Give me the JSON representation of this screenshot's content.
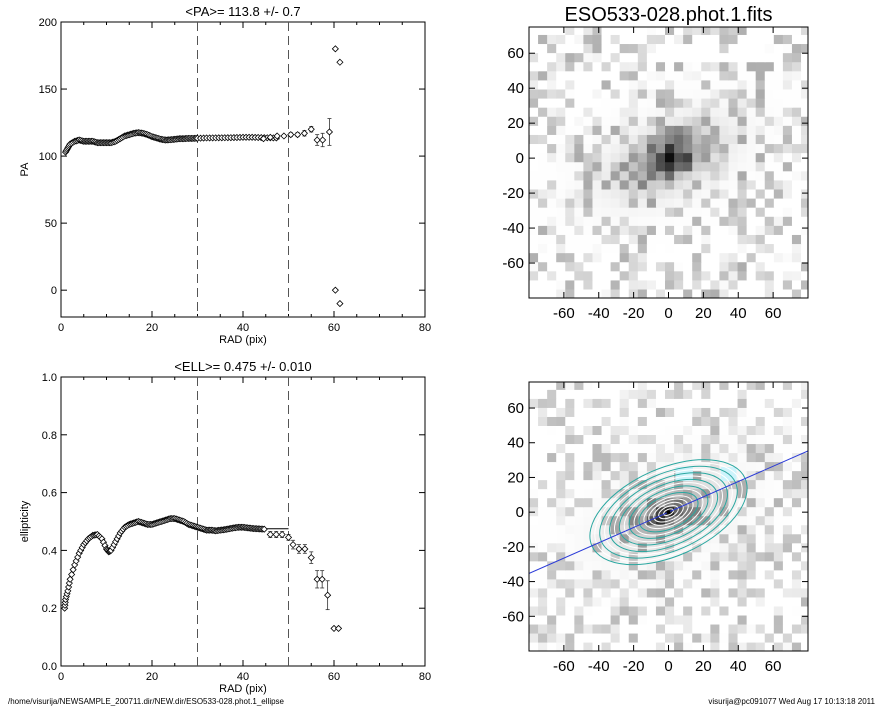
{
  "footer": {
    "path": "/home/visurija/NEWSAMPLE_200711.dir/NEW.dir/ESO533-028.phot.1_ellipse",
    "stamp": "visurija@pc091077  Wed Aug 17 10:13:18 2011"
  },
  "chart_data": [
    {
      "type": "scatter",
      "title": "<PA>= 113.8 +/-   0.7",
      "xlabel": "RAD (pix)",
      "ylabel": "PA",
      "xlim": [
        0,
        80
      ],
      "ylim": [
        -20,
        200
      ],
      "xticks": [
        0,
        20,
        40,
        60,
        80
      ],
      "yticks": [
        0,
        50,
        100,
        150,
        200
      ],
      "vlines": [
        30,
        50
      ],
      "dense_curve": [
        [
          1,
          103
        ],
        [
          1.5,
          106
        ],
        [
          2,
          109
        ],
        [
          3,
          111
        ],
        [
          4,
          112
        ],
        [
          5,
          111
        ],
        [
          6,
          111
        ],
        [
          7,
          111
        ],
        [
          8,
          110
        ],
        [
          9,
          110
        ],
        [
          10,
          110
        ],
        [
          11,
          110
        ],
        [
          12,
          111
        ],
        [
          13,
          113
        ],
        [
          14,
          115
        ],
        [
          15,
          116
        ],
        [
          16,
          117
        ],
        [
          17,
          117.5
        ],
        [
          18,
          117
        ],
        [
          19,
          116
        ],
        [
          20,
          114.5
        ],
        [
          21,
          113.5
        ],
        [
          22,
          112.5
        ],
        [
          23,
          112
        ],
        [
          24,
          112.2
        ],
        [
          25,
          112.5
        ],
        [
          26,
          113
        ],
        [
          27,
          113
        ],
        [
          28,
          113.2
        ],
        [
          29,
          113.2
        ],
        [
          30,
          113.3
        ],
        [
          32,
          113.5
        ],
        [
          34,
          113.6
        ],
        [
          36,
          113.7
        ],
        [
          38,
          113.8
        ],
        [
          40,
          114
        ],
        [
          42,
          114
        ],
        [
          44,
          113.8
        ],
        [
          46,
          113.6
        ],
        [
          48,
          113.5
        ]
      ],
      "points": [
        {
          "x": 44.5,
          "y": 113,
          "err": 1
        },
        {
          "x": 46,
          "y": 114,
          "err": 1
        },
        {
          "x": 47.5,
          "y": 115,
          "err": 1
        },
        {
          "x": 49,
          "y": 115,
          "err": 1
        },
        {
          "x": 50.5,
          "y": 116,
          "err": 1.5
        },
        {
          "x": 52,
          "y": 116,
          "err": 1.5
        },
        {
          "x": 53.5,
          "y": 117,
          "err": 2
        },
        {
          "x": 55,
          "y": 120,
          "err": 2
        },
        {
          "x": 56.3,
          "y": 112,
          "err": 4
        },
        {
          "x": 57.5,
          "y": 112,
          "err": 5
        },
        {
          "x": 59,
          "y": 118,
          "err": 10
        },
        {
          "x": 60.3,
          "y": 180,
          "err": 0
        },
        {
          "x": 61.3,
          "y": 170,
          "err": 0
        },
        {
          "x": 60.3,
          "y": 0,
          "err": 0
        },
        {
          "x": 61.3,
          "y": -10,
          "err": 0
        }
      ]
    },
    {
      "type": "scatter",
      "title": "<ELL>= 0.475 +/-  0.010",
      "xlabel": "RAD (pix)",
      "ylabel": "ellipticity",
      "xlim": [
        0,
        80
      ],
      "ylim": [
        0.0,
        1.0
      ],
      "xticks": [
        0,
        20,
        40,
        60,
        80
      ],
      "yticks": [
        "0.0",
        "0.2",
        "0.4",
        "0.6",
        "0.8",
        "1.0"
      ],
      "vlines": [
        30,
        50
      ],
      "hline": {
        "x0": 30,
        "x1": 50,
        "y": 0.475
      },
      "dense_curve": [
        [
          0.8,
          0.2
        ],
        [
          1,
          0.23
        ],
        [
          1.5,
          0.26
        ],
        [
          2,
          0.3
        ],
        [
          3,
          0.35
        ],
        [
          4,
          0.39
        ],
        [
          5,
          0.42
        ],
        [
          6,
          0.44
        ],
        [
          7,
          0.452
        ],
        [
          8,
          0.455
        ],
        [
          9,
          0.44
        ],
        [
          10,
          0.405
        ],
        [
          10.5,
          0.395
        ],
        [
          11,
          0.4
        ],
        [
          12,
          0.43
        ],
        [
          13,
          0.46
        ],
        [
          14,
          0.48
        ],
        [
          15,
          0.49
        ],
        [
          16,
          0.495
        ],
        [
          17,
          0.5
        ],
        [
          18,
          0.495
        ],
        [
          19,
          0.49
        ],
        [
          20,
          0.49
        ],
        [
          21,
          0.495
        ],
        [
          22,
          0.5
        ],
        [
          23,
          0.505
        ],
        [
          24,
          0.51
        ],
        [
          25,
          0.51
        ],
        [
          26,
          0.505
        ],
        [
          27,
          0.5
        ],
        [
          28,
          0.49
        ],
        [
          29,
          0.485
        ],
        [
          30,
          0.48
        ],
        [
          31,
          0.475
        ],
        [
          32,
          0.47
        ],
        [
          33,
          0.47
        ],
        [
          34,
          0.468
        ],
        [
          35,
          0.47
        ],
        [
          36,
          0.472
        ],
        [
          37,
          0.475
        ],
        [
          38,
          0.478
        ],
        [
          39,
          0.48
        ],
        [
          40,
          0.48
        ],
        [
          41,
          0.478
        ],
        [
          42,
          0.476
        ],
        [
          43,
          0.475
        ],
        [
          44,
          0.474
        ],
        [
          45,
          0.473
        ]
      ],
      "points": [
        {
          "x": 46,
          "y": 0.455,
          "err": 0.01
        },
        {
          "x": 47.3,
          "y": 0.455,
          "err": 0.01
        },
        {
          "x": 48.6,
          "y": 0.455,
          "err": 0.01
        },
        {
          "x": 50,
          "y": 0.445,
          "err": 0.01
        },
        {
          "x": 51,
          "y": 0.42,
          "err": 0.015
        },
        {
          "x": 52.3,
          "y": 0.405,
          "err": 0.015
        },
        {
          "x": 53.6,
          "y": 0.405,
          "err": 0.015
        },
        {
          "x": 55,
          "y": 0.375,
          "err": 0.02
        },
        {
          "x": 56.3,
          "y": 0.3,
          "err": 0.03
        },
        {
          "x": 57.4,
          "y": 0.3,
          "err": 0.03
        },
        {
          "x": 58.6,
          "y": 0.245,
          "err": 0.05
        },
        {
          "x": 60,
          "y": 0.13,
          "err": 0
        },
        {
          "x": 61,
          "y": 0.13,
          "err": 0
        }
      ]
    },
    {
      "type": "heatmap",
      "title": "ESO533-028.phot.1.fits",
      "xlim": [
        -80,
        80
      ],
      "ylim": [
        -80,
        75
      ],
      "xticks": [
        -60,
        -40,
        -20,
        0,
        20,
        40,
        60
      ],
      "yticks": [
        60,
        40,
        20,
        0,
        -20,
        -40,
        -60
      ],
      "source": {
        "center": [
          0,
          0
        ],
        "pa_deg": 23.8,
        "ellipticity": 0.475
      },
      "colormap": "gray-inverted"
    },
    {
      "type": "heatmap",
      "title": "",
      "xlim": [
        -80,
        80
      ],
      "ylim": [
        -80,
        75
      ],
      "xticks": [
        -60,
        -40,
        -20,
        0,
        20,
        40,
        60
      ],
      "yticks": [
        60,
        40,
        20,
        0,
        -20,
        -40,
        -60
      ],
      "major_axis_color": "#2a3ad8",
      "contour_colors": [
        "#ffffff",
        "#2aa7a0"
      ],
      "masked_color": "#cdf3fb",
      "source": {
        "center": [
          0,
          0
        ],
        "pa_deg": 23.8,
        "ellipticity": 0.475
      }
    }
  ]
}
